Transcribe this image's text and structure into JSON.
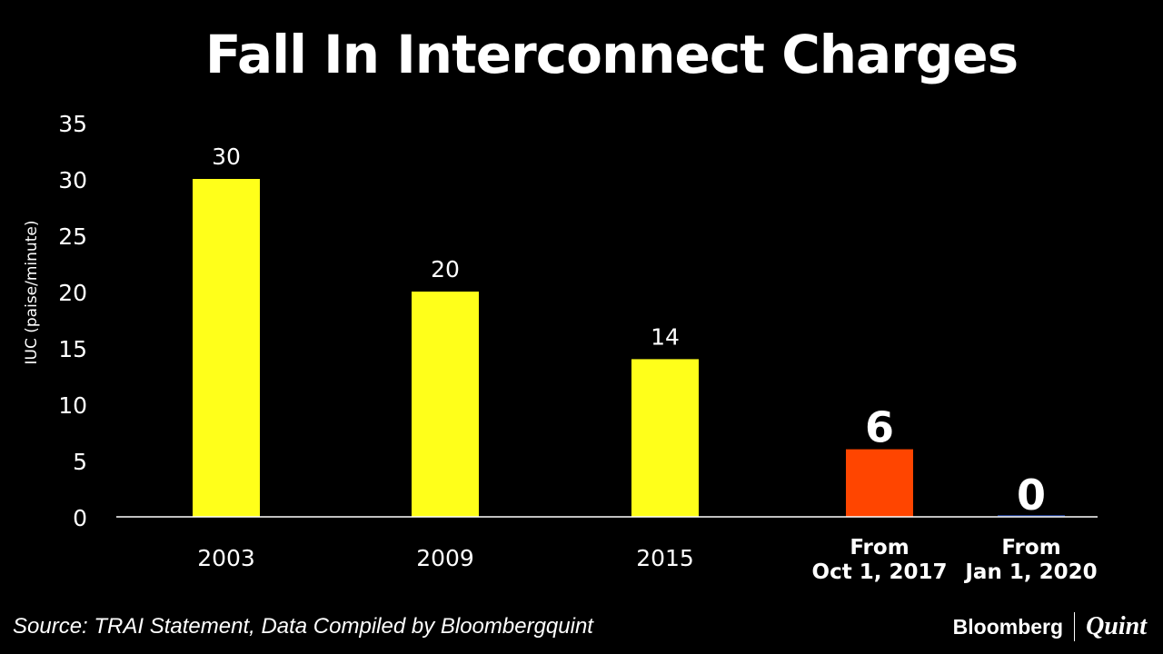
{
  "chart_data": {
    "type": "bar",
    "title": "Fall In Interconnect Charges",
    "ylabel": "IUC (paise/minute)",
    "xlabel": "",
    "ylim": [
      0,
      35
    ],
    "yticks": [
      0,
      5,
      10,
      15,
      20,
      25,
      30,
      35
    ],
    "grid": false,
    "categories": [
      [
        "2003"
      ],
      [
        "2009"
      ],
      [
        "2015"
      ],
      [
        "From",
        "Oct 1, 2017"
      ],
      [
        "From",
        "Jan 1, 2020"
      ]
    ],
    "values": [
      30,
      20,
      14,
      6,
      0
    ],
    "colors": [
      "#ffff1a",
      "#ffff1a",
      "#ffff1a",
      "#ff4500",
      "#1e3a8a"
    ],
    "data_labels": [
      "30",
      "20",
      "14",
      "6",
      "0"
    ],
    "highlight_from_index": 3
  },
  "footer": {
    "source": "Source: TRAI Statement, Data Compiled by Bloombergquint",
    "brand_left": "Bloomberg",
    "brand_right": "Quint"
  }
}
